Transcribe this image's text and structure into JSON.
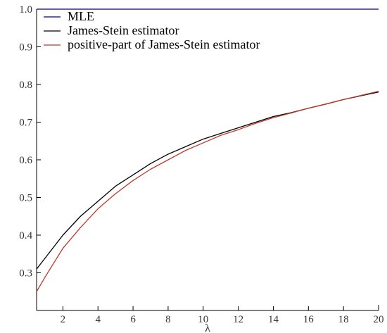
{
  "chart_data": {
    "type": "line",
    "title": "",
    "xlabel": "λ",
    "ylabel": "",
    "xlim": [
      0.5,
      20
    ],
    "ylim": [
      0.2,
      1.0
    ],
    "x_ticks": [
      2,
      4,
      6,
      8,
      10,
      12,
      14,
      16,
      18,
      20
    ],
    "y_ticks": [
      0.3,
      0.4,
      0.5,
      0.6,
      0.7,
      0.8,
      0.9,
      1.0
    ],
    "x_tick_labels": [
      "2",
      "4",
      "6",
      "8",
      "10",
      "12",
      "14",
      "16",
      "18",
      "20"
    ],
    "y_tick_labels": [
      "0.3",
      "0.4",
      "0.5",
      "0.6",
      "0.7",
      "0.8",
      "0.9",
      "1.0"
    ],
    "grid": false,
    "legend_position": "top-left",
    "x": [
      0.5,
      1,
      2,
      3,
      4,
      5,
      6,
      7,
      8,
      9,
      10,
      11,
      12,
      13,
      14,
      15,
      16,
      17,
      18,
      19,
      20
    ],
    "series": [
      {
        "name": "MLE",
        "color": "#00008b",
        "values": [
          1.0,
          1.0,
          1.0,
          1.0,
          1.0,
          1.0,
          1.0,
          1.0,
          1.0,
          1.0,
          1.0,
          1.0,
          1.0,
          1.0,
          1.0,
          1.0,
          1.0,
          1.0,
          1.0,
          1.0,
          1.0
        ]
      },
      {
        "name": "James-Stein estimator",
        "color": "#000000",
        "values": [
          0.31,
          0.34,
          0.4,
          0.45,
          0.49,
          0.53,
          0.56,
          0.59,
          0.615,
          0.635,
          0.655,
          0.67,
          0.685,
          0.7,
          0.715,
          0.725,
          0.737,
          0.748,
          0.76,
          0.77,
          0.78
        ]
      },
      {
        "name": "positive-part of James-Stein estimator",
        "color": "#c0392b",
        "values": [
          0.25,
          0.29,
          0.365,
          0.42,
          0.47,
          0.51,
          0.545,
          0.575,
          0.6,
          0.625,
          0.645,
          0.665,
          0.68,
          0.697,
          0.712,
          0.724,
          0.737,
          0.748,
          0.76,
          0.771,
          0.782
        ]
      }
    ]
  }
}
